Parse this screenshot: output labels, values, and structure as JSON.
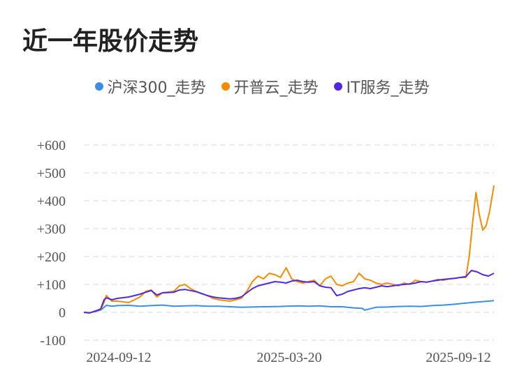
{
  "chart_data": {
    "type": "line",
    "title": "近一年股价走势",
    "x_tick_labels": [
      "2024-09-12",
      "2025-03-20",
      "2025-09-12"
    ],
    "y_tick_labels": [
      "+600",
      "+500",
      "+400",
      "+300",
      "+200",
      "+100",
      "0",
      "-100"
    ],
    "ylim": [
      -100,
      600
    ],
    "grid": true,
    "legend_position": "top-center",
    "series": [
      {
        "name": "沪深300_走势",
        "color": "#3a8ee6",
        "x": [
          0,
          5,
          10,
          15,
          20,
          25,
          30,
          40,
          50,
          60,
          70,
          80,
          90,
          100,
          110,
          120,
          130,
          140,
          150,
          160,
          175,
          180,
          190,
          200,
          210,
          220,
          230,
          240,
          248,
          250,
          260,
          270,
          280,
          290,
          300,
          310,
          320,
          330,
          340,
          350,
          360,
          365
        ],
        "values": [
          0,
          -2,
          3,
          8,
          25,
          22,
          24,
          25,
          22,
          24,
          26,
          22,
          23,
          24,
          22,
          22,
          20,
          18,
          19,
          20,
          21,
          22,
          23,
          22,
          23,
          20,
          20,
          16,
          14,
          8,
          18,
          19,
          21,
          22,
          21,
          24,
          26,
          29,
          33,
          37,
          40,
          42
        ]
      },
      {
        "name": "开普云_走势",
        "color": "#f28c00",
        "x": [
          0,
          5,
          10,
          15,
          18,
          20,
          25,
          30,
          40,
          45,
          50,
          55,
          60,
          65,
          70,
          80,
          85,
          90,
          95,
          100,
          110,
          115,
          120,
          130,
          135,
          140,
          145,
          150,
          155,
          160,
          165,
          170,
          175,
          180,
          185,
          190,
          195,
          200,
          205,
          210,
          215,
          220,
          225,
          230,
          235,
          240,
          245,
          250,
          255,
          260,
          265,
          270,
          275,
          280,
          285,
          290,
          295,
          300,
          305,
          310,
          315,
          320,
          325,
          330,
          335,
          340,
          343,
          346,
          349,
          352,
          355,
          358,
          361,
          365
        ],
        "values": [
          0,
          -3,
          5,
          10,
          35,
          60,
          40,
          40,
          35,
          45,
          55,
          75,
          80,
          55,
          70,
          75,
          95,
          100,
          85,
          75,
          60,
          50,
          45,
          40,
          45,
          50,
          75,
          110,
          130,
          120,
          140,
          135,
          125,
          160,
          120,
          110,
          105,
          110,
          115,
          95,
          120,
          130,
          100,
          95,
          105,
          110,
          140,
          120,
          115,
          105,
          100,
          105,
          100,
          95,
          105,
          100,
          115,
          110,
          108,
          112,
          118,
          115,
          120,
          122,
          125,
          125,
          200,
          320,
          430,
          350,
          295,
          310,
          360,
          455
        ]
      },
      {
        "name": "IT服务_走势",
        "color": "#5028e0",
        "x": [
          0,
          5,
          10,
          15,
          18,
          20,
          25,
          30,
          40,
          45,
          50,
          55,
          60,
          65,
          70,
          80,
          85,
          90,
          95,
          100,
          110,
          115,
          120,
          130,
          135,
          140,
          145,
          150,
          155,
          160,
          165,
          170,
          175,
          180,
          185,
          190,
          195,
          200,
          205,
          210,
          215,
          220,
          225,
          230,
          235,
          240,
          245,
          250,
          255,
          260,
          265,
          270,
          275,
          280,
          285,
          290,
          295,
          300,
          305,
          310,
          315,
          320,
          325,
          330,
          335,
          340,
          345,
          350,
          355,
          360,
          365
        ],
        "values": [
          0,
          -2,
          4,
          12,
          45,
          52,
          45,
          50,
          55,
          60,
          65,
          72,
          78,
          62,
          70,
          72,
          80,
          82,
          78,
          74,
          60,
          55,
          52,
          48,
          50,
          55,
          70,
          85,
          95,
          100,
          105,
          110,
          108,
          105,
          112,
          115,
          110,
          108,
          110,
          95,
          90,
          88,
          60,
          65,
          75,
          80,
          85,
          88,
          85,
          90,
          95,
          92,
          95,
          98,
          100,
          102,
          105,
          110,
          108,
          112,
          115,
          118,
          120,
          122,
          125,
          128,
          150,
          145,
          135,
          130,
          140
        ]
      }
    ]
  }
}
